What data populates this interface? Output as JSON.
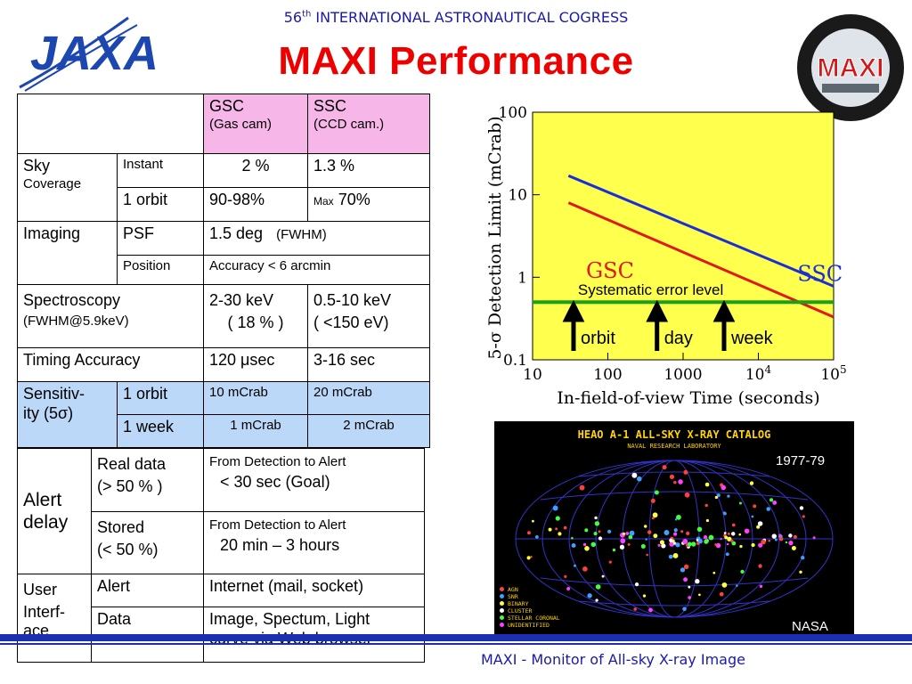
{
  "header": {
    "conference_num": "56",
    "conference_sup": "th",
    "conference_rest": " INTERNATIONAL ASTRONAUTICAL COGRESS",
    "title": "MAXI   Performance",
    "logo_text": "JAXA",
    "mission_logo_text": "MAXI"
  },
  "table": {
    "gsc_head": "GSC",
    "gsc_sub": "(Gas cam)",
    "ssc_head": "SSC",
    "ssc_sub": "(CCD cam.)",
    "sky": "Sky",
    "coverage": "Coverage",
    "instant": "Instant",
    "instant_gsc": "2 %",
    "instant_ssc": "1.3 %",
    "one_orbit": "1 orbit",
    "orbit_gsc": "90-98%",
    "orbit_ssc_small": "Max",
    "orbit_ssc": "70%",
    "imaging": "Imaging",
    "psf": "PSF",
    "psf_val": "1.5 deg",
    "psf_note": "(FWHM)",
    "position": "Position",
    "position_val": "Accuracy < 6  arcmin",
    "spectroscopy": "Spectroscopy",
    "spectroscopy_sub": "(FWHM@5.9keV)",
    "spec_gsc1": "2-30 keV",
    "spec_gsc2": "( 18 % )",
    "spec_ssc1": "0.5-10 keV",
    "spec_ssc2": "( <150 eV)",
    "timing": "Timing Accuracy",
    "timing_gsc": "120 μsec",
    "timing_ssc": "3-16 sec",
    "sens1": "Sensitiv-",
    "sens2": "ity  (5σ)",
    "sens_orbit": "1 orbit",
    "sens_orbit_gsc": "10 mCrab",
    "sens_orbit_ssc": "20 mCrab",
    "sens_week": "1 week",
    "sens_week_gsc": "1 mCrab",
    "sens_week_ssc": "2  mCrab",
    "alert1": "Alert",
    "alert2": "delay",
    "real1": "Real data",
    "real2": "(> 50 % )",
    "real_val1": "From Detection  to  Alert",
    "real_val2": "< 30 sec  (Goal)",
    "stored1": "Stored",
    "stored2": "(< 50 %)",
    "stored_val1": "From Detection  to  Alert",
    "stored_val2": "20 min – 3 hours",
    "user1": "User",
    "user2": "Interf-",
    "user3": "ace",
    "alert_row": "Alert",
    "alert_row_val": "Internet  (mail, socket)",
    "data_row": "Data",
    "data_row_val1": "Image, Spectum, Light",
    "data_row_val2": "curve via Web browser"
  },
  "chart_data": {
    "type": "line",
    "xlabel": "In-field-of-view Time (seconds)",
    "ylabel": "5-σ  Detection Limit (mCrab)",
    "x_scale": "log",
    "y_scale": "log",
    "xlim": [
      10,
      100000
    ],
    "ylim": [
      0.1,
      100
    ],
    "x_ticks": [
      "10",
      "100",
      "1000",
      "10^4",
      "10^5"
    ],
    "y_ticks": [
      "0.1",
      "1",
      "10",
      "100"
    ],
    "background": "#ffff4d",
    "series": [
      {
        "name": "SSC",
        "color": "#1b2fd8",
        "x": [
          30,
          100000
        ],
        "y": [
          17,
          0.78
        ]
      },
      {
        "name": "GSC",
        "color": "#e01818",
        "x": [
          30,
          100000
        ],
        "y": [
          8,
          0.33
        ]
      }
    ],
    "reference_line": {
      "label": "Systematic error level",
      "y": 0.5,
      "color": "#1aa11a"
    },
    "markers": [
      {
        "label": "orbit",
        "x": 35
      },
      {
        "label": "day",
        "x": 450
      },
      {
        "label": "week",
        "x": 3500
      }
    ]
  },
  "sky_map": {
    "title": "HEAO A-1 ALL-SKY X-RAY CATALOG",
    "subtitle": "NAVAL RESEARCH LABORATORY",
    "years": "1977-79",
    "credit": "NASA",
    "legend": [
      {
        "label": "AGN",
        "color": "#ff4040"
      },
      {
        "label": "SNR",
        "color": "#40a0ff"
      },
      {
        "label": "BINARY",
        "color": "#ffff40"
      },
      {
        "label": "CLUSTER",
        "color": "#ffffff"
      },
      {
        "label": "STELLAR CORONAL",
        "color": "#40ff40"
      },
      {
        "label": "UNIDENTIFIED",
        "color": "#ff40ff"
      }
    ]
  },
  "footer": "MAXI - Monitor of All-sky X-ray Image"
}
